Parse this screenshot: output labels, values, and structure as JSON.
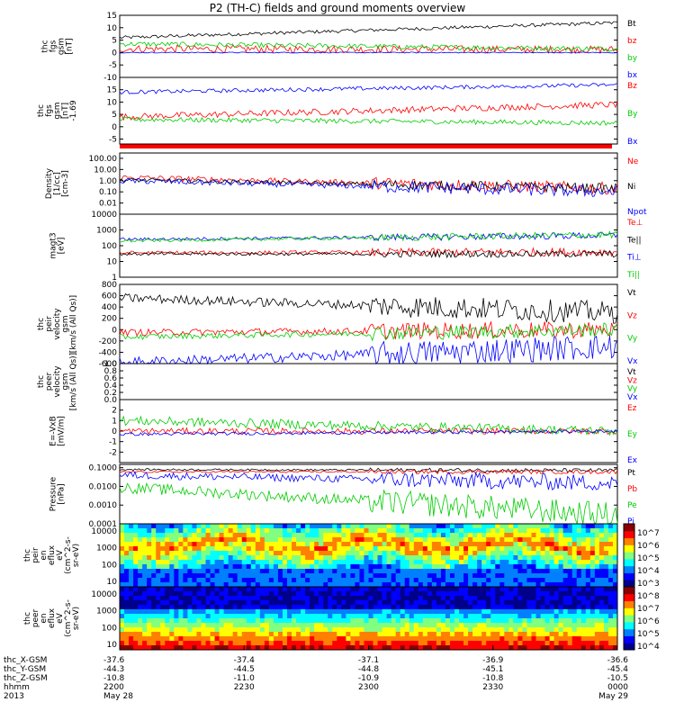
{
  "chart_data": {
    "type": "line",
    "title": "P2 (TH-C) fields and ground moments overview",
    "x_time_ticks": [
      "2200",
      "2230",
      "2300",
      "2330",
      "0000"
    ],
    "panels": [
      {
        "id": "fgs",
        "ylabel": [
          "thc",
          "fgs",
          "gsm",
          "[nT]"
        ],
        "ylim": [
          -10,
          15
        ],
        "yticks": [
          "-10",
          "-5",
          "0",
          "5",
          "10",
          "15"
        ],
        "scale": "linear",
        "series": [
          {
            "name": "Bt",
            "color": "#000000",
            "start": 6,
            "end": 12,
            "noise": 0.7
          },
          {
            "name": "bz",
            "color": "#ff0000",
            "start": 1.5,
            "end": 1.2,
            "noise": 1.5
          },
          {
            "name": "by",
            "color": "#00cc00",
            "start": 3.5,
            "end": 1.5,
            "noise": 1.0
          },
          {
            "name": "bx",
            "color": "#0000ff",
            "start": 0,
            "end": 0,
            "noise": 0.2
          }
        ]
      },
      {
        "id": "fgm",
        "ylabel": [
          "thc",
          "fgs",
          "gsm",
          "[nT]",
          "-1.69"
        ],
        "ylim": [
          -7,
          20
        ],
        "yticks": [
          "-5",
          "0",
          "5",
          "10",
          "15"
        ],
        "scale": "linear",
        "series": [
          {
            "name": "Bz",
            "color": "#ff0000",
            "start": 4,
            "end": 9,
            "noise": 1.3
          },
          {
            "name": "By",
            "color": "#00cc00",
            "start": 3,
            "end": 1.5,
            "noise": 1.0
          },
          {
            "name": "Bx",
            "color": "#0000ff",
            "start": 14,
            "end": 17,
            "noise": 0.8
          }
        ]
      },
      {
        "id": "density",
        "ylabel": [
          "Density",
          "[1/cc]",
          "[cm-3]"
        ],
        "ylim": [
          0.001,
          300
        ],
        "yticks": [
          "100.00",
          "10.00",
          "1.00",
          "0.10",
          "0.01"
        ],
        "scale": "log",
        "series": [
          {
            "name": "Ne",
            "color": "#ff0000",
            "start": 2,
            "end": 0.2,
            "noise": 0.25
          },
          {
            "name": "Ni",
            "color": "#000000",
            "start": 1.2,
            "end": 0.2,
            "noise": 0.2
          },
          {
            "name": "Npot",
            "color": "#0000ff",
            "start": 1.0,
            "end": 0.1,
            "noise": 0.25
          }
        ]
      },
      {
        "id": "temp",
        "ylabel": [
          "magt3",
          "[eV]"
        ],
        "ylim": [
          1,
          10000
        ],
        "yticks": [
          "10000",
          "1000",
          "100",
          "10",
          "1"
        ],
        "scale": "log",
        "series": [
          {
            "name": "Te⊥",
            "color": "#ff0000",
            "start": 35,
            "end": 40,
            "noise": 0.12
          },
          {
            "name": "Te||",
            "color": "#000000",
            "start": 30,
            "end": 30,
            "noise": 0.1
          },
          {
            "name": "Ti⊥",
            "color": "#0000ff",
            "start": 250,
            "end": 450,
            "noise": 0.1
          },
          {
            "name": "Ti||",
            "color": "#00cc00",
            "start": 200,
            "end": 500,
            "noise": 0.1
          }
        ]
      },
      {
        "id": "peir",
        "ylabel": [
          "thc",
          "peir",
          "velocity",
          "gsm",
          "[km/s (All Qs)]"
        ],
        "ylim": [
          -600,
          800
        ],
        "yticks": [
          "800",
          "600",
          "400",
          "200",
          "0",
          "-200",
          "-400",
          "-600"
        ],
        "scale": "linear",
        "series": [
          {
            "name": "Vt",
            "color": "#000000",
            "start": 560,
            "end": 300,
            "noise": 80
          },
          {
            "name": "Vz",
            "color": "#ff0000",
            "start": -50,
            "end": 0,
            "noise": 60
          },
          {
            "name": "Vy",
            "color": "#00cc00",
            "start": -130,
            "end": 0,
            "noise": 50
          },
          {
            "name": "Vx",
            "color": "#0000ff",
            "start": -580,
            "end": -300,
            "noise": 90
          }
        ]
      },
      {
        "id": "peer",
        "ylabel": [
          "thc",
          "peer",
          "velocity",
          "gsm",
          "[km/s (All Qs)]"
        ],
        "ylim": [
          0,
          1
        ],
        "yticks": [
          "1.0",
          "0.8",
          "0.6",
          "0.4",
          "0.2",
          "0.0"
        ],
        "scale": "linear",
        "series": [
          {
            "name": "Vt",
            "color": "#000000"
          },
          {
            "name": "Vz",
            "color": "#ff0000"
          },
          {
            "name": "Vy",
            "color": "#00cc00"
          },
          {
            "name": "Vx",
            "color": "#0000ff"
          }
        ]
      },
      {
        "id": "efield",
        "ylabel": [
          "E=-VxB",
          "[mV/m]"
        ],
        "ylim": [
          -3,
          3
        ],
        "yticks": [
          "2",
          "1",
          "0",
          "-1",
          "-2"
        ],
        "scale": "linear",
        "series": [
          {
            "name": "Ez",
            "color": "#ff0000",
            "start": 0,
            "end": 0,
            "noise": 0.3
          },
          {
            "name": "Ey",
            "color": "#00cc00",
            "start": 1.0,
            "end": 0,
            "noise": 0.45
          },
          {
            "name": "Ex",
            "color": "#0000ff",
            "start": -0.3,
            "end": 0,
            "noise": 0.15
          }
        ]
      },
      {
        "id": "pressure",
        "ylabel": [
          "Pressure",
          "[nPa]"
        ],
        "ylim": [
          0.0001,
          0.15
        ],
        "yticks": [
          "0.1000",
          "0.0100",
          "0.0010",
          "0.0001"
        ],
        "scale": "log",
        "series": [
          {
            "name": "Pt",
            "color": "#000000",
            "start": 0.08,
            "end": 0.07,
            "noise": 0.05
          },
          {
            "name": "Pb",
            "color": "#ff0000",
            "start": 0.06,
            "end": 0.06,
            "noise": 0.05
          },
          {
            "name": "Pe",
            "color": "#00cc00",
            "start": 0.009,
            "end": 0.0003,
            "noise": 0.3
          },
          {
            "name": "Pi",
            "color": "#0000ff",
            "start": 0.04,
            "end": 0.015,
            "noise": 0.2
          }
        ]
      }
    ],
    "spectrograms": [
      {
        "id": "peir-en-eflux",
        "ylabel": [
          "thc",
          "peir",
          "en",
          "eflux",
          "eV",
          "(cm^2-s-",
          "sr-eV)"
        ],
        "yticks": [
          "10000",
          "1000",
          "100",
          "10"
        ],
        "colorbar_ticks": [
          "10^7",
          "10^6",
          "10^5",
          "10^4",
          "10^3"
        ]
      },
      {
        "id": "peer-en-eflux",
        "ylabel": [
          "thc",
          "peer",
          "en",
          "eflux",
          "eV",
          "(cm^2-s-",
          "sr-eV)"
        ],
        "yticks": [
          "10000",
          "1000",
          "100",
          "10"
        ],
        "colorbar_ticks": [
          "10^8",
          "10^7",
          "10^6",
          "10^5",
          "10^4"
        ]
      }
    ],
    "footer": {
      "row_labels": [
        "thc_X-GSM",
        "thc_Y-GSM",
        "thc_Z-GSM",
        "hhmm",
        "2013"
      ],
      "columns": [
        [
          "-37.6",
          "-44.3",
          "-10.8",
          "2200",
          "May 28"
        ],
        [
          "-37.4",
          "-44.5",
          "-11.0",
          "2230",
          ""
        ],
        [
          "-37.1",
          "-44.8",
          "-10.9",
          "2300",
          ""
        ],
        [
          "-36.9",
          "-45.1",
          "-10.8",
          "2330",
          ""
        ],
        [
          "-36.6",
          "-45.4",
          "-10.5",
          "0000",
          "May 29"
        ]
      ]
    }
  }
}
